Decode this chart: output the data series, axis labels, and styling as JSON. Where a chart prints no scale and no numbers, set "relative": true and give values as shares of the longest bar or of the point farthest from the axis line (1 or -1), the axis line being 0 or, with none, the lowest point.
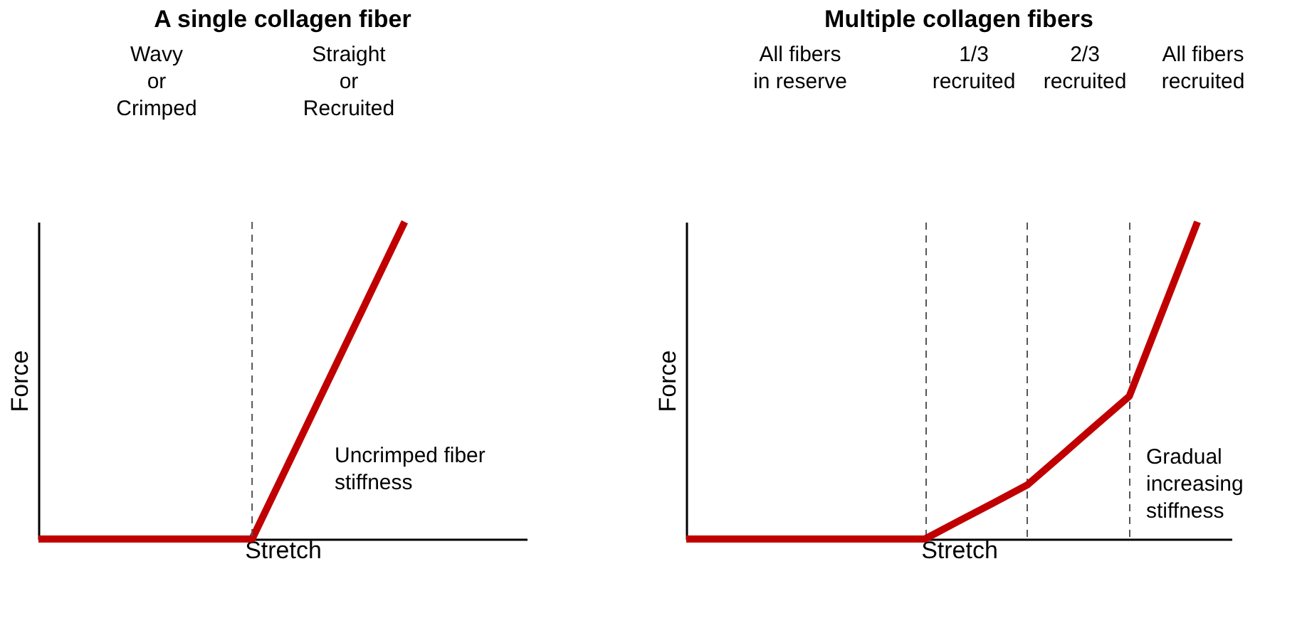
{
  "chart_data": [
    {
      "type": "line",
      "title": "A single collagen fiber",
      "xlabel": "Stretch",
      "ylabel": "Force",
      "relative": true,
      "tick_labels": false,
      "grid": false,
      "marker": "none",
      "line_style": "solid",
      "categories": [
        null,
        null,
        null,
        null,
        null,
        null,
        null,
        null,
        null,
        null,
        null,
        null,
        null,
        null,
        null,
        null,
        null
      ],
      "series": [
        {
          "color": "#c00000",
          "values": [
            0,
            0,
            0,
            0,
            0,
            0,
            0,
            0,
            0.2,
            0.4,
            0.6,
            0.8,
            1,
            null,
            null,
            null,
            null
          ]
        }
      ],
      "annotations": [
        "Wavy\nor\nCrimped",
        "Straight\nor\nRecruited",
        "Uncrimped fiber\nstiffness"
      ]
    },
    {
      "type": "line",
      "title": "Multiple collagen fibers",
      "xlabel": "Stretch",
      "ylabel": "Force",
      "relative": true,
      "tick_labels": false,
      "grid": "x",
      "marker": "none",
      "line_style": "solid",
      "categories": [
        null,
        null,
        null,
        null,
        null,
        null,
        null,
        null,
        null,
        null,
        null,
        null,
        null,
        null,
        null,
        null,
        null
      ],
      "series": [
        {
          "color": "#c00000",
          "values": [
            0,
            0,
            0,
            0,
            0,
            0,
            0,
            0,
            0.057,
            0.113,
            0.17,
            0.263,
            0.357,
            0.45,
            0.725,
            1,
            null
          ]
        }
      ],
      "annotations": [
        "All fibers\nin reserve",
        "1/3\nrecruited",
        "2/3\nrecruited",
        "All fibers\nrecruited",
        "Gradual\nincreasing\nstiffness"
      ]
    }
  ]
}
